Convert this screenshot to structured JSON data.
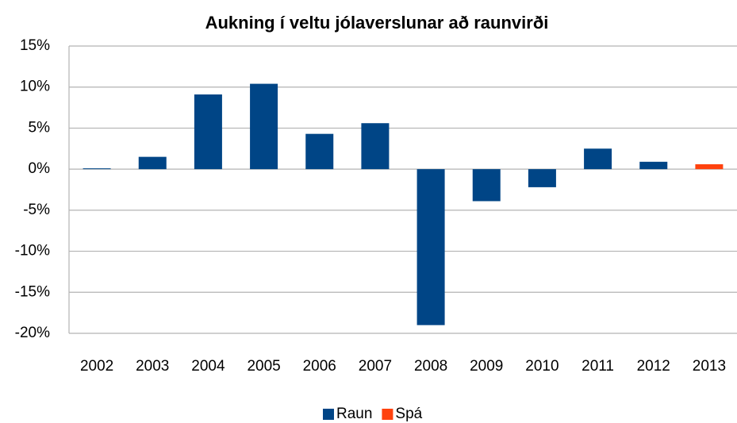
{
  "chart_data": {
    "type": "bar",
    "title": "Aukning í veltu jólaverslunar að raunvirði",
    "categories": [
      "2002",
      "2003",
      "2004",
      "2005",
      "2006",
      "2007",
      "2008",
      "2009",
      "2010",
      "2011",
      "2012",
      "2013"
    ],
    "series": [
      {
        "name": "Raun",
        "color": "#004586",
        "values": [
          0.1,
          1.5,
          9.1,
          10.4,
          4.3,
          5.6,
          -19.0,
          -3.9,
          -2.2,
          2.5,
          0.9,
          null
        ]
      },
      {
        "name": "Spá",
        "color": "#ff420e",
        "values": [
          null,
          null,
          null,
          null,
          null,
          null,
          null,
          null,
          null,
          null,
          null,
          0.6
        ]
      }
    ],
    "ylim": [
      -20,
      15
    ],
    "yticks": [
      {
        "value": -20,
        "label": "-20%"
      },
      {
        "value": -15,
        "label": "-15%"
      },
      {
        "value": -10,
        "label": "-10%"
      },
      {
        "value": -5,
        "label": "-5%"
      },
      {
        "value": 0,
        "label": "0%"
      },
      {
        "value": 5,
        "label": "5%"
      },
      {
        "value": 10,
        "label": "10%"
      },
      {
        "value": 15,
        "label": "15%"
      }
    ],
    "grid": true,
    "legend": "bottom"
  }
}
